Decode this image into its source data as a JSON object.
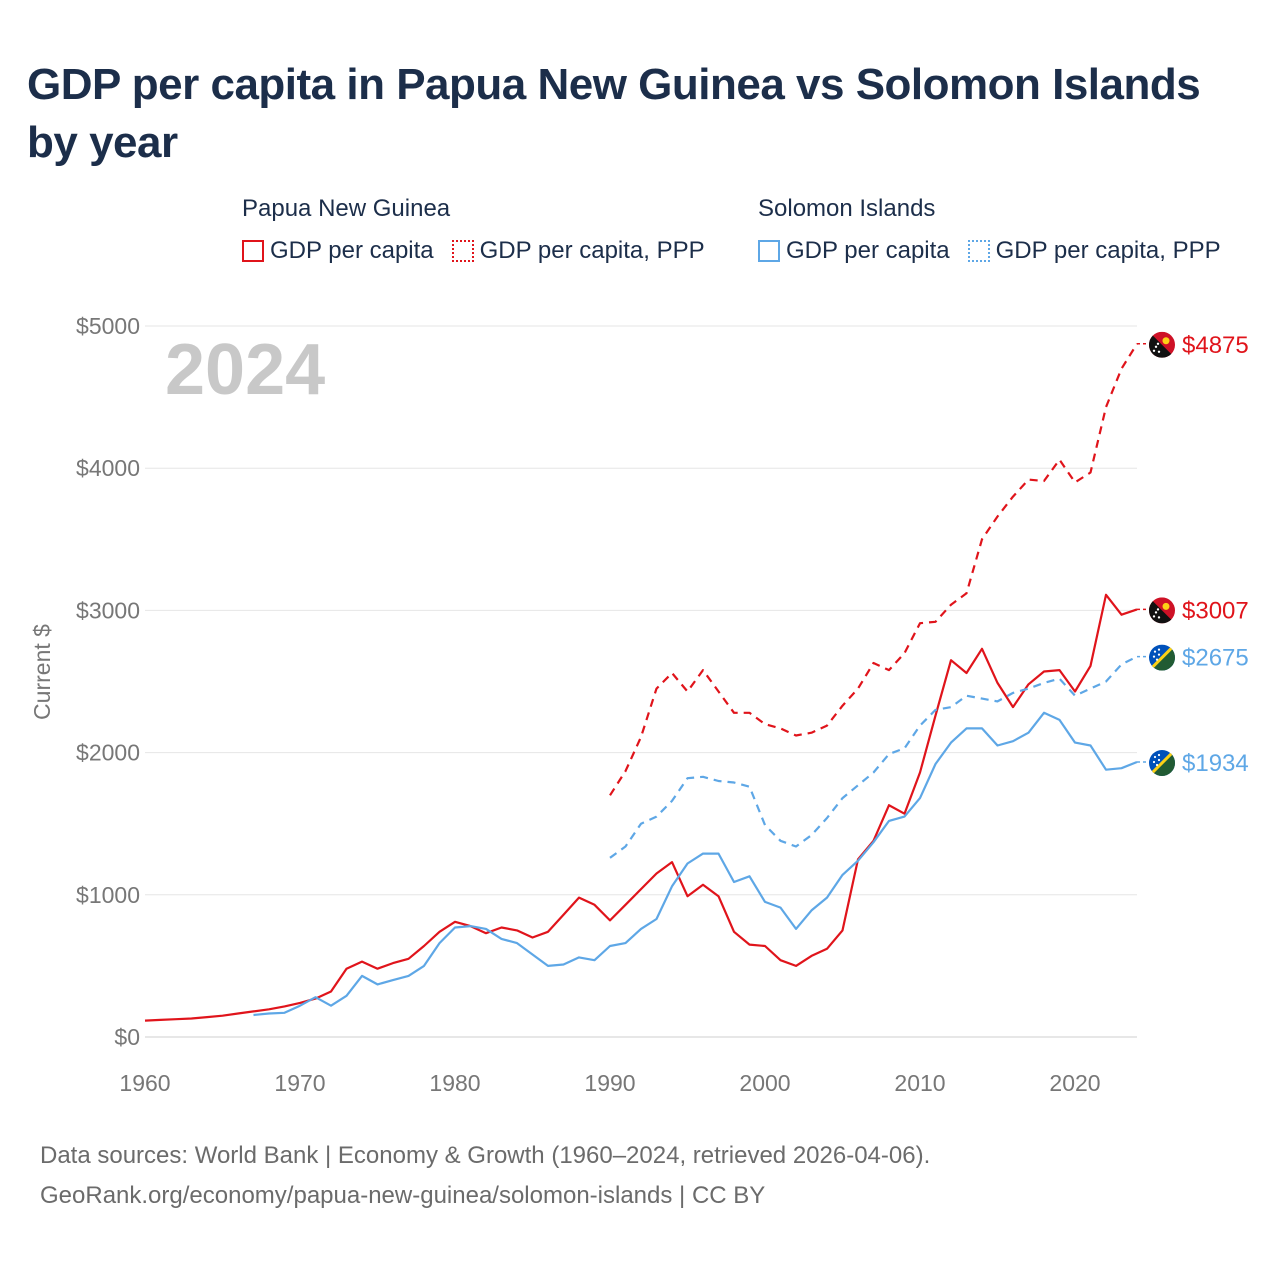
{
  "title": "GDP per capita in Papua New Guinea vs Solomon Islands by year",
  "legend": {
    "groups": [
      {
        "name": "Papua New Guinea",
        "color": "#e0141b",
        "items": [
          {
            "label": "GDP per capita",
            "style": "solid"
          },
          {
            "label": "GDP per capita, PPP",
            "style": "dotted"
          }
        ]
      },
      {
        "name": "Solomon Islands",
        "color": "#5ea7e6",
        "items": [
          {
            "label": "GDP per capita",
            "style": "solid"
          },
          {
            "label": "GDP per capita, PPP",
            "style": "dotted"
          }
        ]
      }
    ]
  },
  "year_watermark": "2024",
  "footer": {
    "line1": "Data sources: World Bank | Economy & Growth (1960–2024, retrieved 2026-04-06).",
    "line2": "GeoRank.org/economy/papua-new-guinea/solomon-islands | CC BY"
  },
  "chart_data": {
    "type": "line",
    "title": "GDP per capita in Papua New Guinea vs Solomon Islands by year",
    "xlabel": "",
    "ylabel": "Current $",
    "xlim": [
      1960,
      2024
    ],
    "ylim": [
      0,
      5000
    ],
    "x_ticks": [
      1960,
      1970,
      1980,
      1990,
      2000,
      2010,
      2020
    ],
    "y_ticks": [
      0,
      1000,
      2000,
      3000,
      4000,
      5000
    ],
    "y_tick_labels": [
      "$0",
      "$1000",
      "$2000",
      "$3000",
      "$4000",
      "$5000"
    ],
    "grid": true,
    "series": [
      {
        "name": "Papua New Guinea GDP per capita",
        "country": "Papua New Guinea",
        "color": "#e0141b",
        "dash": "solid",
        "end_label": "$3007",
        "x": [
          1960,
          1961,
          1962,
          1963,
          1964,
          1965,
          1966,
          1967,
          1968,
          1969,
          1970,
          1971,
          1972,
          1973,
          1974,
          1975,
          1976,
          1977,
          1978,
          1979,
          1980,
          1981,
          1982,
          1983,
          1984,
          1985,
          1986,
          1987,
          1988,
          1989,
          1990,
          1991,
          1992,
          1993,
          1994,
          1995,
          1996,
          1997,
          1998,
          1999,
          2000,
          2001,
          2002,
          2003,
          2004,
          2005,
          2006,
          2007,
          2008,
          2009,
          2010,
          2011,
          2012,
          2013,
          2014,
          2015,
          2016,
          2017,
          2018,
          2019,
          2020,
          2021,
          2022,
          2023,
          2024
        ],
        "values": [
          115,
          120,
          125,
          130,
          140,
          150,
          165,
          180,
          195,
          215,
          240,
          270,
          320,
          480,
          530,
          480,
          520,
          550,
          640,
          740,
          810,
          780,
          730,
          770,
          750,
          700,
          740,
          860,
          980,
          930,
          820,
          930,
          1040,
          1150,
          1230,
          990,
          1070,
          990,
          740,
          650,
          640,
          540,
          500,
          570,
          620,
          750,
          1250,
          1380,
          1630,
          1570,
          1860,
          2260,
          2650,
          2560,
          2730,
          2490,
          2320,
          2480,
          2570,
          2580,
          2430,
          2610,
          3110,
          2970,
          3007
        ]
      },
      {
        "name": "Papua New Guinea GDP per capita, PPP",
        "country": "Papua New Guinea",
        "color": "#e0141b",
        "dash": "dashed",
        "end_label": "$4875",
        "x": [
          1990,
          1991,
          1992,
          1993,
          1994,
          1995,
          1996,
          1997,
          1998,
          1999,
          2000,
          2001,
          2002,
          2003,
          2004,
          2005,
          2006,
          2007,
          2008,
          2009,
          2010,
          2011,
          2012,
          2013,
          2014,
          2015,
          2016,
          2017,
          2018,
          2019,
          2020,
          2021,
          2022,
          2023,
          2024
        ],
        "values": [
          1700,
          1870,
          2110,
          2450,
          2560,
          2430,
          2580,
          2430,
          2280,
          2280,
          2200,
          2170,
          2120,
          2140,
          2190,
          2330,
          2450,
          2630,
          2580,
          2700,
          2910,
          2920,
          3040,
          3120,
          3500,
          3660,
          3800,
          3920,
          3910,
          4060,
          3900,
          3970,
          4430,
          4700,
          4875
        ]
      },
      {
        "name": "Solomon Islands GDP per capita",
        "country": "Solomon Islands",
        "color": "#5ea7e6",
        "dash": "solid",
        "end_label": "$1934",
        "x": [
          1967,
          1968,
          1969,
          1970,
          1971,
          1972,
          1973,
          1974,
          1975,
          1976,
          1977,
          1978,
          1979,
          1980,
          1981,
          1982,
          1983,
          1984,
          1985,
          1986,
          1987,
          1988,
          1989,
          1990,
          1991,
          1992,
          1993,
          1994,
          1995,
          1996,
          1997,
          1998,
          1999,
          2000,
          2001,
          2002,
          2003,
          2004,
          2005,
          2006,
          2007,
          2008,
          2009,
          2010,
          2011,
          2012,
          2013,
          2014,
          2015,
          2016,
          2017,
          2018,
          2019,
          2020,
          2021,
          2022,
          2023,
          2024
        ],
        "values": [
          155,
          165,
          170,
          220,
          280,
          220,
          290,
          430,
          370,
          400,
          430,
          500,
          660,
          770,
          780,
          760,
          690,
          660,
          580,
          500,
          510,
          560,
          540,
          640,
          660,
          760,
          830,
          1060,
          1220,
          1290,
          1290,
          1090,
          1130,
          950,
          910,
          760,
          890,
          980,
          1140,
          1240,
          1370,
          1520,
          1550,
          1680,
          1920,
          2070,
          2170,
          2170,
          2050,
          2080,
          2140,
          2280,
          2230,
          2070,
          2050,
          1880,
          1890,
          1934
        ]
      },
      {
        "name": "Solomon Islands GDP per capita, PPP",
        "country": "Solomon Islands",
        "color": "#5ea7e6",
        "dash": "dashed",
        "end_label": "$2675",
        "x": [
          1990,
          1991,
          1992,
          1993,
          1994,
          1995,
          1996,
          1997,
          1998,
          1999,
          2000,
          2001,
          2002,
          2003,
          2004,
          2005,
          2006,
          2007,
          2008,
          2009,
          2010,
          2011,
          2012,
          2013,
          2014,
          2015,
          2016,
          2017,
          2018,
          2019,
          2020,
          2021,
          2022,
          2023,
          2024
        ],
        "values": [
          1260,
          1340,
          1500,
          1550,
          1660,
          1820,
          1830,
          1800,
          1790,
          1760,
          1490,
          1380,
          1340,
          1420,
          1540,
          1680,
          1770,
          1860,
          1990,
          2030,
          2190,
          2300,
          2320,
          2400,
          2380,
          2360,
          2420,
          2450,
          2490,
          2520,
          2400,
          2450,
          2500,
          2620,
          2675
        ]
      }
    ]
  }
}
